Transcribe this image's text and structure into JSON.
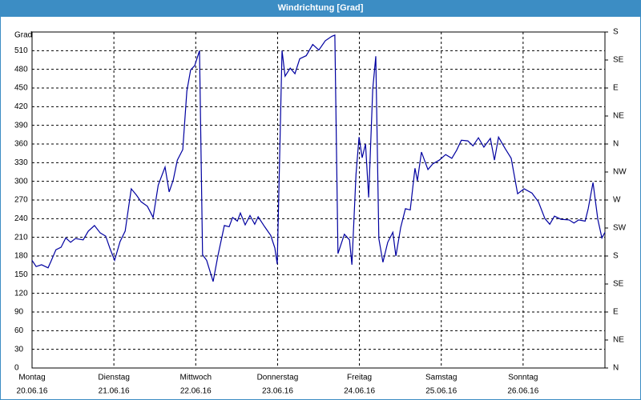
{
  "chart_data": {
    "type": "line",
    "title": "Windrichtung [Grad]",
    "y_label": "Grad",
    "xlim": [
      0,
      168
    ],
    "ylim": [
      0,
      540
    ],
    "y2lim": [
      0,
      540
    ],
    "xticks": [
      {
        "value": 0,
        "label": "Montag"
      },
      {
        "value": 24,
        "label": "Dienstag"
      },
      {
        "value": 48,
        "label": "Mittwoch"
      },
      {
        "value": 72,
        "label": "Donnerstag"
      },
      {
        "value": 96,
        "label": "Freitag"
      },
      {
        "value": 120,
        "label": "Samstag"
      },
      {
        "value": 144,
        "label": "Sonntag"
      }
    ],
    "xtick_dates": [
      "20.06.16",
      "21.06.16",
      "22.06.16",
      "23.06.16",
      "24.06.16",
      "25.06.16",
      "26.06.16"
    ],
    "yticks": [
      0,
      30,
      60,
      90,
      120,
      150,
      180,
      210,
      240,
      270,
      300,
      330,
      360,
      390,
      420,
      450,
      480,
      510
    ],
    "y2ticks": [
      {
        "value": 0,
        "label": "N"
      },
      {
        "value": 45,
        "label": "NE"
      },
      {
        "value": 90,
        "label": "E"
      },
      {
        "value": 135,
        "label": "SE"
      },
      {
        "value": 180,
        "label": "S"
      },
      {
        "value": 225,
        "label": "SW"
      },
      {
        "value": 270,
        "label": "W"
      },
      {
        "value": 315,
        "label": "NW"
      },
      {
        "value": 360,
        "label": "N"
      },
      {
        "value": 405,
        "label": "NE"
      },
      {
        "value": 450,
        "label": "E"
      },
      {
        "value": 495,
        "label": "SE"
      },
      {
        "value": 540,
        "label": "S"
      }
    ],
    "grid": true,
    "series": [
      {
        "color": "#0000a0",
        "x": [
          0,
          1.2,
          2.8,
          4.7,
          5.6,
          7,
          8.5,
          9.9,
          11.3,
          12.7,
          15,
          16.5,
          18.3,
          20,
          21.6,
          22.8,
          24.2,
          25.8,
          27.3,
          29.1,
          30.6,
          32,
          33.8,
          35.5,
          37,
          39,
          40.2,
          41.4,
          42.6,
          44.2,
          45.4,
          46.5,
          47.7,
          49.1,
          50,
          51.2,
          53.1,
          54.5,
          56.4,
          57.8,
          58.8,
          60.2,
          61.1,
          62.5,
          63.9,
          65.3,
          66.3,
          68.2,
          70,
          71.2,
          71.9,
          73.3,
          74.2,
          75.7,
          77.1,
          78.5,
          80.4,
          82.3,
          84.1,
          86,
          87.9,
          88.8,
          89.7,
          91.6,
          93.1,
          93.8,
          95,
          95.9,
          96.8,
          97.8,
          98.7,
          99.9,
          100.8,
          101.7,
          102.9,
          104.3,
          105.8,
          106.7,
          108.1,
          109.5,
          110.9,
          112.3,
          113,
          114.2,
          116.1,
          117.5,
          119.4,
          121.3,
          123.1,
          124.5,
          125.9,
          127.8,
          129.3,
          130.9,
          132.5,
          134.4,
          135.6,
          136.8,
          138.7,
          140.5,
          142.4,
          144.3,
          146.6,
          148.5,
          150.4,
          151.8,
          153.2,
          155.1,
          157.5,
          158.9,
          160.3,
          162.2,
          163.1,
          164.5,
          165.9,
          167.1,
          168
        ],
        "values": [
          173,
          163,
          166,
          161,
          172,
          190,
          194,
          209,
          202,
          208,
          206,
          220,
          229,
          217,
          212,
          193,
          173,
          203,
          220,
          288,
          278,
          267,
          260,
          242,
          294,
          323,
          283,
          302,
          334,
          351,
          445,
          479,
          486,
          510,
          182,
          173,
          139,
          180,
          229,
          227,
          242,
          236,
          249,
          230,
          245,
          231,
          243,
          227,
          213,
          193,
          167,
          510,
          469,
          482,
          473,
          497,
          502,
          520,
          511,
          526,
          533,
          535,
          184,
          215,
          206,
          166,
          311,
          371,
          338,
          360,
          274,
          448,
          501,
          208,
          170,
          202,
          218,
          180,
          226,
          256,
          254,
          321,
          301,
          347,
          319,
          328,
          334,
          343,
          337,
          350,
          366,
          365,
          357,
          370,
          355,
          369,
          334,
          371,
          353,
          337,
          280,
          288,
          281,
          267,
          240,
          231,
          244,
          239,
          238,
          233,
          238,
          236,
          256,
          298,
          239,
          209,
          218
        ]
      }
    ]
  }
}
